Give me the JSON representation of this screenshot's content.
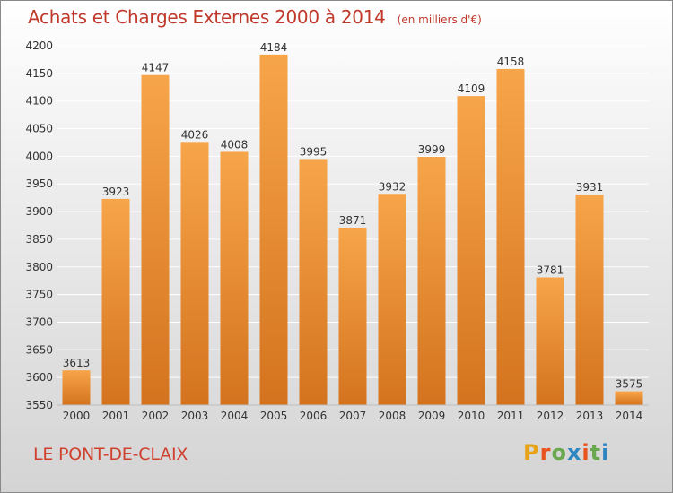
{
  "header": {
    "title": "Achats et Charges Externes 2000 à 2014",
    "unit": "(en milliers d'€)"
  },
  "footer": {
    "commune": "LE PONT-DE-CLAIX",
    "logo_text": "Proxiti",
    "logo_colors": [
      "#e8a317",
      "#e8531f",
      "#6aa84f",
      "#2e86c1",
      "#e8531f",
      "#6aa84f",
      "#2e86c1"
    ]
  },
  "colors": {
    "bar_top": "#f7a54a",
    "bar_bottom": "#d4731f",
    "grid": "#ffffff",
    "text": "#333333"
  },
  "chart_data": {
    "type": "bar",
    "categories": [
      "2000",
      "2001",
      "2002",
      "2003",
      "2004",
      "2005",
      "2006",
      "2007",
      "2008",
      "2009",
      "2010",
      "2011",
      "2012",
      "2013",
      "2014"
    ],
    "values": [
      3613,
      3923,
      4147,
      4026,
      4008,
      4184,
      3995,
      3871,
      3932,
      3999,
      4109,
      4158,
      3781,
      3931,
      3575
    ],
    "ylim": [
      3550,
      4200
    ],
    "yticks": [
      3550,
      3600,
      3650,
      3700,
      3750,
      3800,
      3850,
      3900,
      3950,
      4000,
      4050,
      4100,
      4150,
      4200
    ],
    "grid": true,
    "data_labels": true
  }
}
